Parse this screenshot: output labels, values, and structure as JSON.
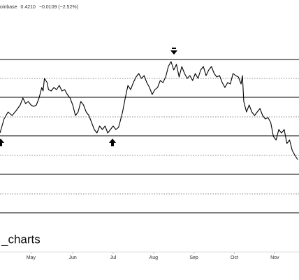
{
  "chart_data": {
    "type": "line",
    "header": {
      "source": "oinbase",
      "price": "0.4210",
      "change": "−0.0109 (−2.52%)"
    },
    "watermark": "_charts",
    "xlim": [
      0,
      222
    ],
    "xticks": [
      {
        "value": 23,
        "label": "May"
      },
      {
        "value": 54,
        "label": "Jun"
      },
      {
        "value": 84,
        "label": "Jul"
      },
      {
        "value": 114,
        "label": "Aug"
      },
      {
        "value": 144,
        "label": "Sep"
      },
      {
        "value": 174,
        "label": "Oct"
      },
      {
        "value": 204,
        "label": "Nov"
      }
    ],
    "ylim": [
      0.289,
      0.649
    ],
    "solid_levels": [
      0.564,
      0.51,
      0.455,
      0.4,
      0.345
    ],
    "dotted_levels": [
      0.537,
      0.482,
      0.427,
      0.372
    ],
    "series": [
      {
        "color": "#000000",
        "x": [
          0,
          3,
          6,
          9,
          12,
          15,
          17,
          19,
          21,
          23,
          25,
          27,
          29,
          31,
          32,
          33,
          35,
          36,
          38,
          40,
          42,
          44,
          46,
          48,
          50,
          52,
          54,
          56,
          58,
          60,
          62,
          64,
          66,
          68,
          70,
          72,
          74,
          76,
          78,
          80,
          82,
          84,
          86,
          88,
          89,
          91,
          93,
          95,
          97,
          99,
          101,
          103,
          105,
          107,
          109,
          111,
          113,
          115,
          117,
          119,
          121,
          123,
          125,
          127,
          129,
          131,
          133,
          135,
          137,
          139,
          141,
          143,
          145,
          147,
          149,
          151,
          153,
          155,
          157,
          159,
          161,
          163,
          165,
          167,
          169,
          171,
          173,
          175,
          177,
          179,
          180,
          181,
          183,
          185,
          187,
          189,
          191,
          193,
          195,
          197,
          199,
          201,
          203,
          205,
          207,
          209,
          211,
          213,
          215,
          217,
          219,
          221
        ],
        "values": [
          0.459,
          0.479,
          0.489,
          0.484,
          0.491,
          0.499,
          0.509,
          0.501,
          0.504,
          0.499,
          0.497,
          0.499,
          0.509,
          0.524,
          0.519,
          0.537,
          0.531,
          0.521,
          0.519,
          0.524,
          0.521,
          0.527,
          0.519,
          0.521,
          0.514,
          0.509,
          0.499,
          0.484,
          0.489,
          0.504,
          0.499,
          0.489,
          0.484,
          0.474,
          0.464,
          0.459,
          0.469,
          0.464,
          0.469,
          0.459,
          0.464,
          0.469,
          0.464,
          0.467,
          0.474,
          0.489,
          0.509,
          0.527,
          0.521,
          0.531,
          0.539,
          0.544,
          0.537,
          0.541,
          0.531,
          0.524,
          0.514,
          0.521,
          0.524,
          0.534,
          0.531,
          0.539,
          0.554,
          0.561,
          0.549,
          0.557,
          0.539,
          0.554,
          0.544,
          0.537,
          0.541,
          0.534,
          0.544,
          0.537,
          0.549,
          0.554,
          0.541,
          0.549,
          0.554,
          0.544,
          0.539,
          0.541,
          0.531,
          0.524,
          0.531,
          0.529,
          0.544,
          0.541,
          0.539,
          0.529,
          0.541,
          0.504,
          0.489,
          0.499,
          0.489,
          0.484,
          0.489,
          0.494,
          0.484,
          0.479,
          0.481,
          0.474,
          0.454,
          0.449,
          0.464,
          0.459,
          0.464,
          0.444,
          0.449,
          0.434,
          0.427,
          0.421
        ]
      }
    ]
  }
}
